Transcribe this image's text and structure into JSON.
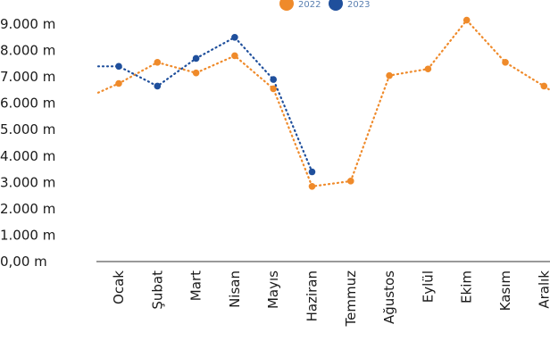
{
  "chart_data": {
    "type": "line",
    "categories": [
      "Ocak",
      "Şubat",
      "Mart",
      "Nisan",
      "Mayıs",
      "Haziran",
      "Temmuz",
      "Ağustos",
      "Eylül",
      "Ekim",
      "Kasım",
      "Aralık"
    ],
    "series": [
      {
        "name": "2022",
        "color": "#ef8a2a",
        "values": [
          6750,
          7550,
          7150,
          7800,
          6550,
          2850,
          3050,
          7050,
          7300,
          9150,
          7550,
          6650
        ],
        "lead_in": 6400,
        "lead_out": 6500
      },
      {
        "name": "2023",
        "color": "#1f4f9c",
        "values": [
          7400,
          6650,
          7700,
          8500,
          6900,
          3400,
          null,
          null,
          null,
          null,
          null,
          null
        ],
        "lead_in": 7400
      }
    ],
    "y_ticks": [
      {
        "value": 0,
        "label": "0,00 m"
      },
      {
        "value": 1000,
        "label": "1.000 m"
      },
      {
        "value": 2000,
        "label": "2.000 m"
      },
      {
        "value": 3000,
        "label": "3.000 m"
      },
      {
        "value": 4000,
        "label": "4.000 m"
      },
      {
        "value": 5000,
        "label": "5.000 m"
      },
      {
        "value": 6000,
        "label": "6.000 m"
      },
      {
        "value": 7000,
        "label": "7.000 m"
      },
      {
        "value": 8000,
        "label": "8.000 m"
      },
      {
        "value": 9000,
        "label": "9.000 m"
      }
    ],
    "ylim": [
      0,
      9000
    ],
    "grid": false,
    "line_style": "dotted",
    "legend_position": "top-center"
  }
}
